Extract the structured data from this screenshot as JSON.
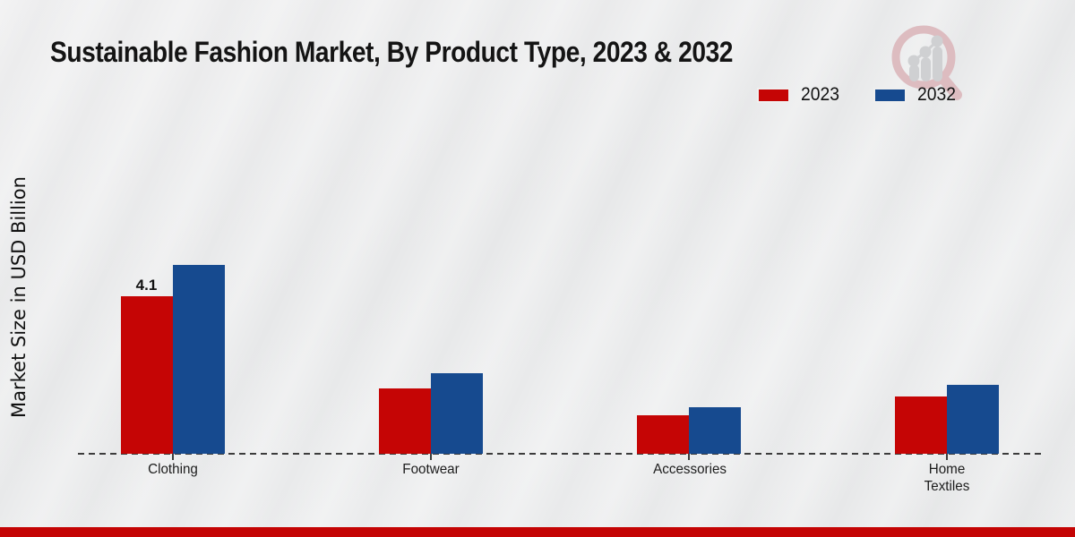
{
  "title": "Sustainable Fashion Market, By Product Type, 2023 & 2032",
  "ylabel": "Market Size in USD Billion",
  "chart_data": {
    "type": "bar",
    "title": "Sustainable Fashion Market, By Product Type, 2023 & 2032",
    "xlabel": "",
    "ylabel": "Market Size in USD Billion",
    "categories": [
      "Clothing",
      "Footwear",
      "Accessories",
      "Home Textiles"
    ],
    "series": [
      {
        "name": "2023",
        "color": "#c50505",
        "values": [
          4.1,
          1.7,
          1.0,
          1.5
        ]
      },
      {
        "name": "2032",
        "color": "#164a8f",
        "values": [
          4.9,
          2.1,
          1.2,
          1.8
        ]
      }
    ],
    "data_labels": [
      {
        "series": "2023",
        "category": "Clothing",
        "text": "4.1"
      }
    ],
    "ylim": [
      0,
      5.5
    ],
    "y_ticks_visible": false,
    "grid": false,
    "baseline_style": "dashed",
    "legend_position": "top-right"
  },
  "branding": {
    "logo_icon": "magnifier-growth-chart-logo"
  },
  "footer": {
    "accent_color": "#c40404"
  }
}
